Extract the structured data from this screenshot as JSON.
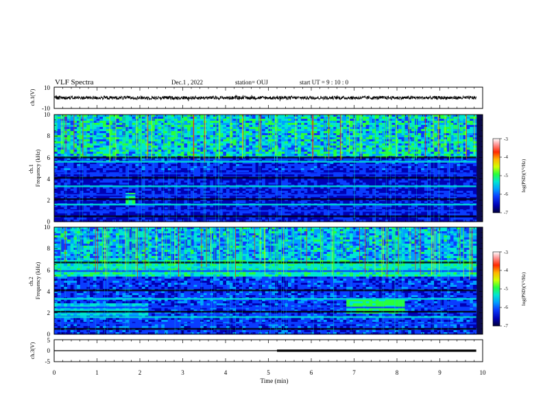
{
  "header": {
    "title": "VLF Spectra",
    "date": "Dec.1 , 2022",
    "station": "station= OUJ",
    "start": "start  UT =   9 : 10 : 0"
  },
  "colors": {
    "spectrogram_scale": [
      "#00003a",
      "#0000b4",
      "#0a3cff",
      "#00a0ff",
      "#00e6d2",
      "#28ff3c",
      "#d2ff00",
      "#ffb400",
      "#ff2800",
      "#ff9696",
      "#ffffff"
    ],
    "waveform": "#000000"
  },
  "chart_data": [
    {
      "type": "line",
      "name_label": "ch.1(V)",
      "x_range": [
        0,
        10
      ],
      "ylim": [
        -10,
        10
      ],
      "yticks": [
        "10",
        "-10"
      ],
      "approx_level": 0,
      "data_extent_min": 9.85
    },
    {
      "type": "heatmap",
      "ylabel": "ch.1\nFrequency  (kHz)",
      "x_range": [
        0,
        10
      ],
      "ylim": [
        0,
        10
      ],
      "yticks": [
        "0",
        "2",
        "4",
        "6",
        "8",
        "10"
      ],
      "colorbar": {
        "label": "log(PSD)(V²/Hz)",
        "range": [
          -7,
          -3
        ],
        "ticks": [
          "-3",
          "-4",
          "-5",
          "-6",
          "-7"
        ]
      },
      "bands_khz": [
        0.5,
        1.0,
        1.6,
        2.1,
        2.5,
        3.3,
        4.1,
        4.5,
        5.6,
        6.0
      ],
      "noted_features": [
        "broadband impulses 6-10 kHz",
        "spot near 1.8 min at 2 kHz"
      ]
    },
    {
      "type": "heatmap",
      "ylabel": "ch.2\nFrequency  (kHz)",
      "x_range": [
        0,
        10
      ],
      "ylim": [
        0,
        10
      ],
      "yticks": [
        "0",
        "2",
        "4",
        "6",
        "8",
        "10"
      ],
      "colorbar": {
        "label": "log(PSD)(V²/Hz)",
        "range": [
          -7,
          -3
        ],
        "ticks": [
          "-3",
          "-4",
          "-5",
          "-6",
          "-7"
        ]
      },
      "bands_khz": [
        0.5,
        1.0,
        1.6,
        2.1,
        2.5,
        3.3,
        4.1,
        5.9,
        6.3,
        6.7
      ],
      "noted_features": [
        "strong band 5.5-7 kHz",
        "emission ~2-3 kHz from 7 to 8 min"
      ]
    },
    {
      "type": "line",
      "name_label": "ch.3(V)",
      "xlabel": "Time  (min)",
      "x_range": [
        0,
        10
      ],
      "xticks": [
        "0",
        "1",
        "2",
        "3",
        "4",
        "5",
        "6",
        "7",
        "8",
        "9",
        "10"
      ],
      "ylim": [
        -5,
        5
      ],
      "yticks": [
        "5",
        "0",
        "-5"
      ],
      "approx_level": 0,
      "step_time_min": 5.2,
      "data_extent_min": 9.85
    }
  ]
}
